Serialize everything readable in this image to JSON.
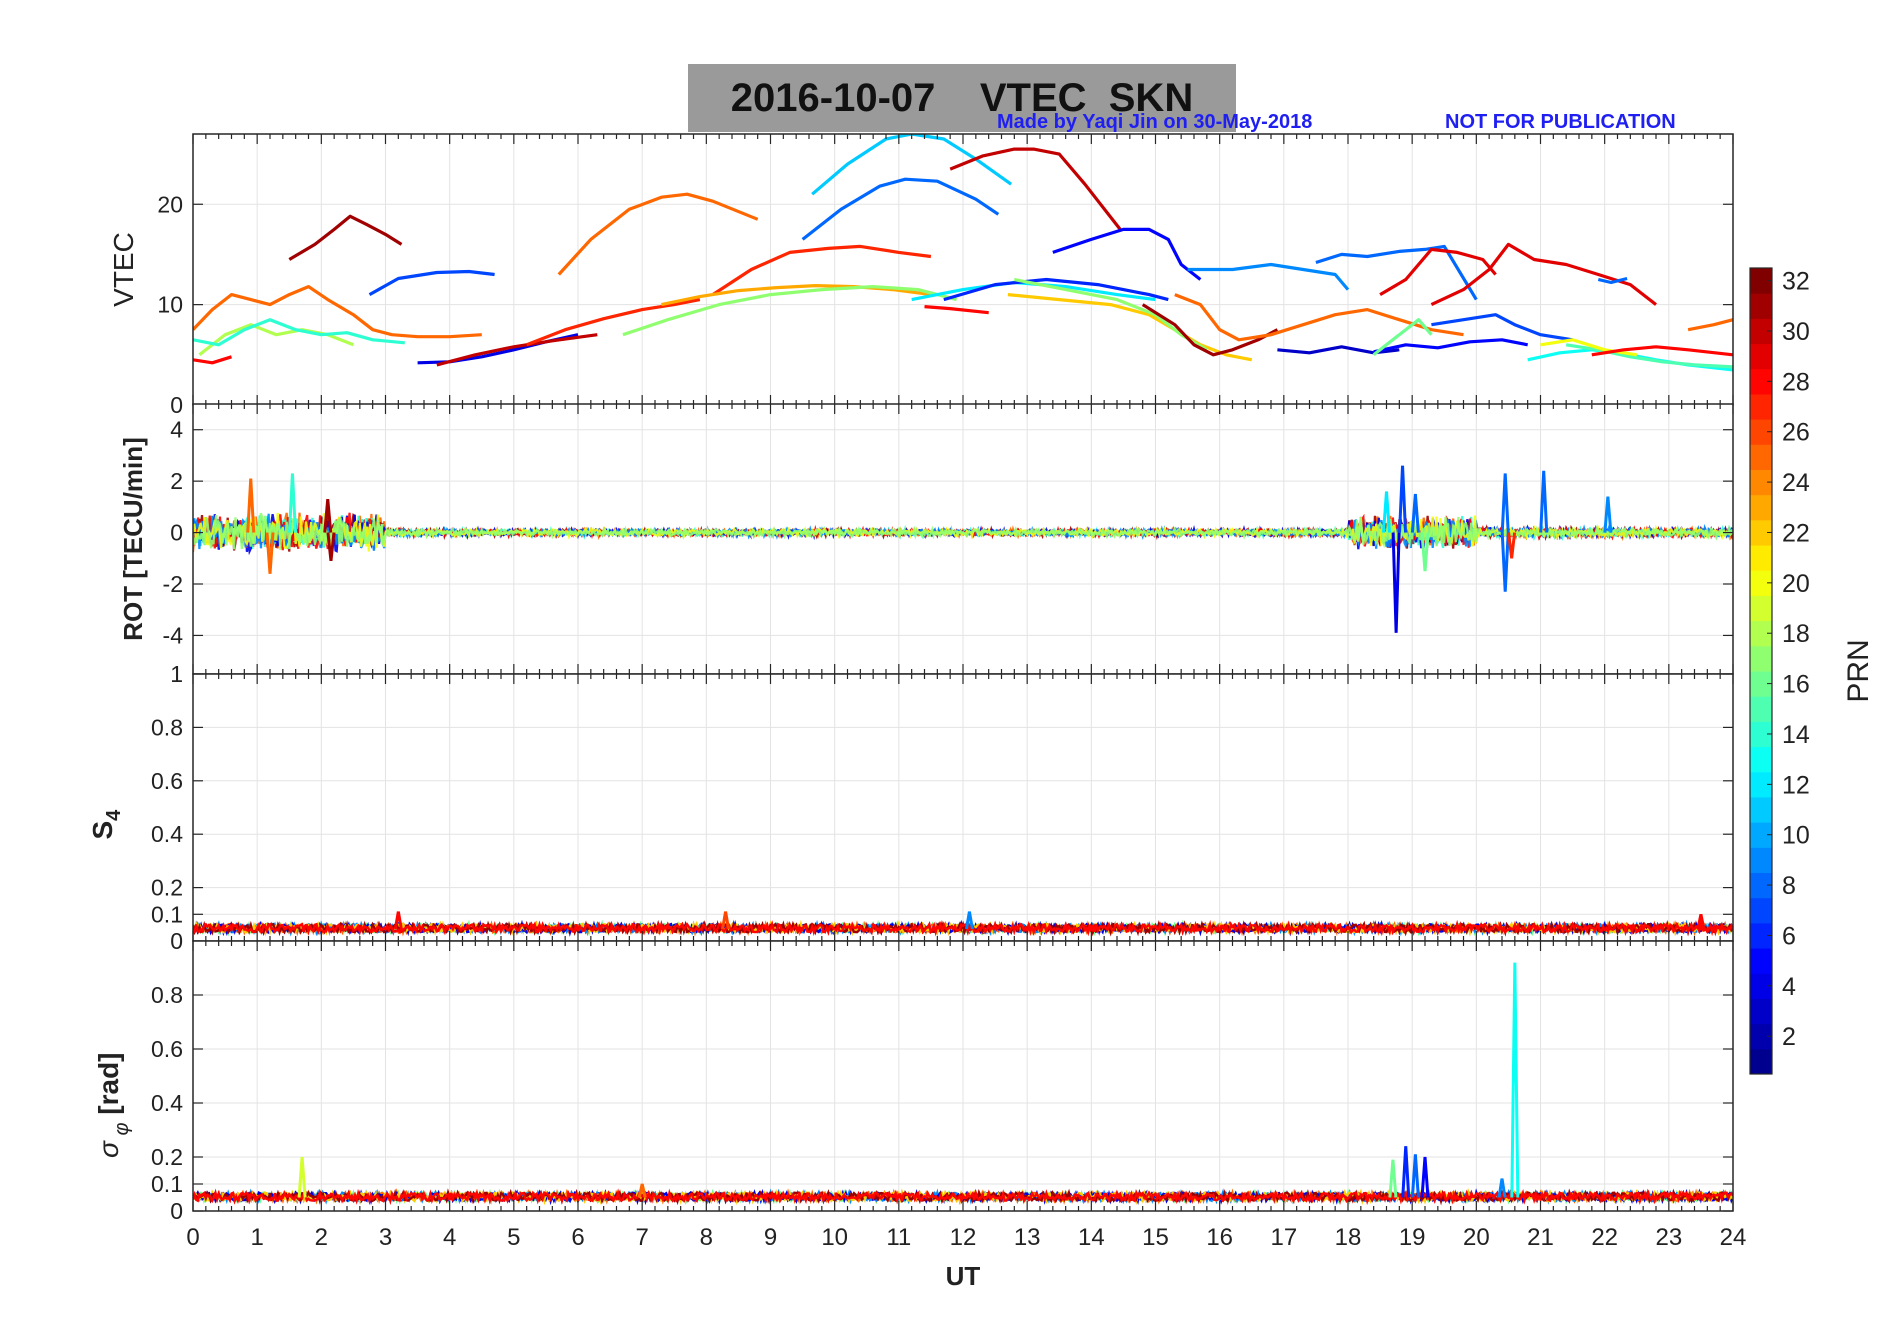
{
  "figure": {
    "title": "2016-10-07    VTEC  SKN",
    "credit": "Made by Yaqi Jin on 30-May-2018",
    "notice": "NOT FOR PUBLICATION"
  },
  "chart_data": [
    {
      "type": "line",
      "panel": "vtec",
      "ylabel": "VTEC",
      "ylim": [
        0,
        27
      ],
      "yticks": [
        "0",
        "10",
        "20"
      ],
      "xlim": [
        0,
        24
      ],
      "grid": true,
      "series": [
        {
          "prn": 31,
          "x": [
            1.5,
            1.9,
            2.2,
            2.45,
            2.7,
            3.0,
            3.25
          ],
          "y": [
            14.5,
            16,
            17.5,
            18.8,
            18,
            17,
            16
          ]
        },
        {
          "prn": 7,
          "x": [
            2.75,
            3.2,
            3.8,
            4.3,
            4.7
          ],
          "y": [
            11,
            12.6,
            13.2,
            13.3,
            13
          ]
        },
        {
          "prn": 25,
          "x": [
            5.7,
            6.2,
            6.8,
            7.3,
            7.7,
            8.1,
            8.8
          ],
          "y": [
            13,
            16.5,
            19.5,
            20.7,
            21,
            20.3,
            18.5
          ]
        },
        {
          "prn": 27,
          "x": [
            8.1,
            8.7,
            9.3,
            9.9,
            10.4,
            11.0,
            11.5
          ],
          "y": [
            11,
            13.5,
            15.2,
            15.6,
            15.8,
            15.2,
            14.8
          ]
        },
        {
          "prn": 11,
          "x": [
            9.65,
            10.2,
            10.8,
            11.2,
            11.7,
            12.2,
            12.75
          ],
          "y": [
            21,
            24,
            26.5,
            27,
            26.5,
            24.5,
            22
          ]
        },
        {
          "prn": 8,
          "x": [
            9.5,
            10.1,
            10.7,
            11.1,
            11.6,
            12.2,
            12.55
          ],
          "y": [
            16.5,
            19.5,
            21.8,
            22.5,
            22.3,
            20.5,
            19
          ]
        },
        {
          "prn": 30,
          "x": [
            11.8,
            12.3,
            12.8,
            13.1,
            13.5,
            13.9,
            14.45
          ],
          "y": [
            23.5,
            24.8,
            25.5,
            25.5,
            25,
            22,
            17.5
          ]
        },
        {
          "prn": 5,
          "x": [
            13.4,
            14.0,
            14.5,
            14.9,
            15.2,
            15.4,
            15.7
          ],
          "y": [
            15.2,
            16.5,
            17.5,
            17.5,
            16.5,
            14,
            12.5
          ]
        },
        {
          "prn": 9,
          "x": [
            15.5,
            16.2,
            16.8,
            17.3,
            17.8,
            18.0
          ],
          "y": [
            13.5,
            13.5,
            14,
            13.5,
            13,
            11.5
          ]
        },
        {
          "prn": 8,
          "x": [
            17.5,
            17.9,
            18.3,
            18.8,
            19.2,
            19.5,
            20.0
          ],
          "y": [
            14.2,
            15,
            14.8,
            15.3,
            15.5,
            15.8,
            10.5
          ]
        },
        {
          "prn": 29,
          "x": [
            18.5,
            18.9,
            19.3,
            19.7,
            20.1,
            20.3
          ],
          "y": [
            11,
            12.5,
            15.5,
            15.2,
            14.5,
            13
          ]
        },
        {
          "prn": 29,
          "x": [
            19.3,
            19.8,
            20.2,
            20.5,
            20.9,
            21.4,
            21.9,
            22.4,
            22.8
          ],
          "y": [
            10,
            11.5,
            13.5,
            16,
            14.5,
            14,
            13,
            12,
            10
          ]
        },
        {
          "prn": 25,
          "x": [
            0,
            0.3,
            0.6,
            0.9,
            1.2,
            1.5,
            1.8,
            2.1,
            2.5,
            2.8,
            3.1,
            3.5,
            4.0,
            4.5
          ],
          "y": [
            7.5,
            9.5,
            11,
            10.5,
            10,
            11,
            11.8,
            10.5,
            9,
            7.5,
            7,
            6.8,
            6.8,
            7
          ]
        },
        {
          "prn": 18,
          "x": [
            0.1,
            0.5,
            0.9,
            1.3,
            1.7,
            2.1,
            2.5
          ],
          "y": [
            5,
            7,
            8,
            7,
            7.5,
            7,
            6
          ]
        },
        {
          "prn": 14,
          "x": [
            0,
            0.4,
            0.8,
            1.2,
            1.6,
            2.0,
            2.4,
            2.8,
            3.3
          ],
          "y": [
            6.5,
            6,
            7.5,
            8.5,
            7.5,
            7,
            7.2,
            6.5,
            6.2
          ]
        },
        {
          "prn": 28,
          "x": [
            0,
            0.3,
            0.6
          ],
          "y": [
            4.5,
            4.2,
            4.8
          ]
        },
        {
          "prn": 4,
          "x": [
            3.5,
            4.0,
            4.5,
            5.0,
            5.5,
            6.0
          ],
          "y": [
            4.2,
            4.3,
            4.8,
            5.5,
            6.3,
            7
          ]
        },
        {
          "prn": 30,
          "x": [
            3.8,
            4.4,
            5.0,
            5.6,
            6.3
          ],
          "y": [
            4,
            5,
            5.8,
            6.4,
            7
          ]
        },
        {
          "prn": 27,
          "x": [
            5.2,
            5.8,
            6.4,
            7.0,
            7.5,
            7.9
          ],
          "y": [
            6,
            7.5,
            8.6,
            9.5,
            10,
            10.5
          ]
        },
        {
          "prn": 23,
          "x": [
            7.3,
            7.9,
            8.5,
            9.1,
            9.7,
            10.3,
            10.9,
            11.5
          ],
          "y": [
            10,
            10.8,
            11.4,
            11.7,
            11.9,
            11.8,
            11.5,
            11
          ]
        },
        {
          "prn": 17,
          "x": [
            6.7,
            7.4,
            8.2,
            9.0,
            9.8,
            10.6,
            11.3,
            11.9
          ],
          "y": [
            7,
            8.5,
            10,
            11,
            11.5,
            11.8,
            11.5,
            10.5
          ]
        },
        {
          "prn": 12,
          "x": [
            11.2,
            12.0,
            12.8,
            13.6,
            14.4,
            15.0
          ],
          "y": [
            10.5,
            11.5,
            12.2,
            11.8,
            11,
            10.5
          ]
        },
        {
          "prn": 6,
          "x": [
            11.7,
            12.5,
            13.3,
            14.1,
            14.9,
            15.2
          ],
          "y": [
            10.5,
            12,
            12.5,
            12,
            11,
            10.5
          ]
        },
        {
          "prn": 22,
          "x": [
            12.7,
            13.5,
            14.3,
            14.9,
            15.3,
            15.7,
            16.1,
            16.5
          ],
          "y": [
            11,
            10.5,
            10,
            9,
            7.5,
            6,
            5,
            4.5
          ]
        },
        {
          "prn": 17,
          "x": [
            12.8,
            13.6,
            14.4,
            15.0,
            15.4,
            15.8
          ],
          "y": [
            12.5,
            11.5,
            10.5,
            9,
            7,
            5.5
          ]
        },
        {
          "prn": 31,
          "x": [
            14.8,
            15.3,
            15.6,
            15.9,
            16.2,
            16.6,
            16.9
          ],
          "y": [
            10,
            8,
            6,
            5,
            5.5,
            6.5,
            7.5
          ]
        },
        {
          "prn": 25,
          "x": [
            15.3,
            15.7,
            16.0,
            16.3,
            16.8,
            17.3,
            17.8,
            18.3,
            18.8,
            19.3,
            19.8
          ],
          "y": [
            11,
            10,
            7.5,
            6.5,
            7,
            8,
            9,
            9.5,
            8.5,
            7.5,
            7
          ]
        },
        {
          "prn": 3,
          "x": [
            16.9,
            17.4,
            17.9,
            18.4,
            18.8
          ],
          "y": [
            5.5,
            5.2,
            5.8,
            5.2,
            5.5
          ]
        },
        {
          "prn": 5,
          "x": [
            18.4,
            18.9,
            19.4,
            19.9,
            20.4,
            20.8
          ],
          "y": [
            5.3,
            6,
            5.7,
            6.3,
            6.5,
            6
          ]
        },
        {
          "prn": 7,
          "x": [
            19.3,
            19.8,
            20.3,
            20.6,
            21.0,
            21.5
          ],
          "y": [
            8,
            8.5,
            9,
            8,
            7,
            6.5
          ]
        },
        {
          "prn": 16,
          "x": [
            18.4,
            18.8,
            19.1,
            19.3
          ],
          "y": [
            5,
            7,
            8.5,
            7
          ]
        },
        {
          "prn": 13,
          "x": [
            20.8,
            21.3,
            21.8,
            22.3,
            22.8,
            23.3,
            24.0
          ],
          "y": [
            4.5,
            5.2,
            5.5,
            5.1,
            4.5,
            4,
            3.5
          ]
        },
        {
          "prn": 15,
          "x": [
            21.4,
            21.9,
            22.4,
            22.9,
            23.4,
            24.0
          ],
          "y": [
            6,
            5.5,
            4.8,
            4.3,
            4,
            3.8
          ]
        },
        {
          "prn": 20,
          "x": [
            21.0,
            21.5,
            22.0,
            22.5
          ],
          "y": [
            6,
            6.5,
            5.5,
            5
          ]
        },
        {
          "prn": 28,
          "x": [
            21.8,
            22.3,
            22.8,
            23.3,
            24.0
          ],
          "y": [
            5,
            5.5,
            5.8,
            5.5,
            5
          ]
        },
        {
          "prn": 25,
          "x": [
            23.3,
            23.7,
            24.0
          ],
          "y": [
            7.5,
            8,
            8.5
          ]
        },
        {
          "prn": 8,
          "x": [
            21.9,
            22.1,
            22.35
          ],
          "y": [
            12.5,
            12.2,
            12.6
          ]
        },
        {
          "prn": 28,
          "x": [
            11.4,
            11.8,
            12.4
          ],
          "y": [
            9.8,
            9.6,
            9.2
          ]
        }
      ]
    },
    {
      "type": "line",
      "panel": "rot",
      "ylabel": "ROT [TECU/min]",
      "ylim": [
        -5.5,
        5
      ],
      "yticks": [
        "-4",
        "-2",
        "0",
        "2",
        "4"
      ],
      "xlim": [
        0,
        24
      ],
      "grid": true,
      "noise_bands": [
        {
          "x0": 0.0,
          "x1": 3.0,
          "amplitude": 0.8
        },
        {
          "x0": 3.0,
          "x1": 18.0,
          "amplitude": 0.15
        },
        {
          "x0": 18.0,
          "x1": 20.0,
          "amplitude": 0.7
        },
        {
          "x0": 20.0,
          "x1": 24.0,
          "amplitude": 0.2
        }
      ],
      "spikes": [
        {
          "x": 0.9,
          "y": 2.1,
          "prn": 25
        },
        {
          "x": 1.2,
          "y": -1.6,
          "prn": 25
        },
        {
          "x": 1.55,
          "y": 2.3,
          "prn": 14
        },
        {
          "x": 2.1,
          "y": 1.3,
          "prn": 31
        },
        {
          "x": 2.15,
          "y": -1.1,
          "prn": 31
        },
        {
          "x": 18.75,
          "y": -3.9,
          "prn": 4
        },
        {
          "x": 18.85,
          "y": 2.6,
          "prn": 7
        },
        {
          "x": 18.6,
          "y": 1.6,
          "prn": 12
        },
        {
          "x": 19.05,
          "y": 1.5,
          "prn": 8
        },
        {
          "x": 19.2,
          "y": -1.5,
          "prn": 16
        },
        {
          "x": 20.45,
          "y": 2.3,
          "prn": 8
        },
        {
          "x": 20.45,
          "y": -2.3,
          "prn": 8
        },
        {
          "x": 20.55,
          "y": -1.0,
          "prn": 27
        },
        {
          "x": 21.05,
          "y": 2.4,
          "prn": 8
        },
        {
          "x": 22.05,
          "y": 1.4,
          "prn": 9
        }
      ]
    },
    {
      "type": "line",
      "panel": "s4",
      "ylabel": "S4",
      "ylim": [
        0,
        1
      ],
      "yticks": [
        "0",
        "0.1",
        "0.2",
        "0.4",
        "0.6",
        "0.8",
        "1"
      ],
      "xlim": [
        0,
        24
      ],
      "grid": true,
      "baseline": 0.045,
      "noise_amplitude": 0.015,
      "spikes": [
        {
          "x": 3.2,
          "y": 0.11,
          "prn": 28
        },
        {
          "x": 8.3,
          "y": 0.11,
          "prn": 26
        },
        {
          "x": 12.1,
          "y": 0.11,
          "prn": 9
        },
        {
          "x": 23.5,
          "y": 0.1,
          "prn": 28
        }
      ]
    },
    {
      "type": "line",
      "panel": "sigma_phi",
      "ylabel": "σ_φ [rad]",
      "xlabel": "UT",
      "ylim": [
        0,
        1
      ],
      "yticks": [
        "0",
        "0.1",
        "0.2",
        "0.4",
        "0.6",
        "0.8"
      ],
      "xlim": [
        0,
        24
      ],
      "xticks": [
        "0",
        "1",
        "2",
        "3",
        "4",
        "5",
        "6",
        "7",
        "8",
        "9",
        "10",
        "11",
        "12",
        "13",
        "14",
        "15",
        "16",
        "17",
        "18",
        "19",
        "20",
        "21",
        "22",
        "23",
        "24"
      ],
      "grid": true,
      "baseline": 0.05,
      "noise_amplitude": 0.015,
      "spikes": [
        {
          "x": 1.7,
          "y": 0.2,
          "prn": 19
        },
        {
          "x": 7.0,
          "y": 0.1,
          "prn": 25
        },
        {
          "x": 18.7,
          "y": 0.19,
          "prn": 16
        },
        {
          "x": 18.9,
          "y": 0.24,
          "prn": 6
        },
        {
          "x": 19.05,
          "y": 0.21,
          "prn": 8
        },
        {
          "x": 19.2,
          "y": 0.2,
          "prn": 5
        },
        {
          "x": 20.4,
          "y": 0.12,
          "prn": 9
        },
        {
          "x": 20.6,
          "y": 0.92,
          "prn": 13
        }
      ]
    }
  ],
  "colorbar": {
    "label": "PRN",
    "min": 1,
    "max": 32,
    "ticks": [
      "2",
      "4",
      "6",
      "8",
      "10",
      "12",
      "14",
      "16",
      "18",
      "20",
      "22",
      "24",
      "26",
      "28",
      "30",
      "32"
    ],
    "colormap": "jet",
    "colors": [
      "#00008f",
      "#0000ff",
      "#0080ff",
      "#00ffff",
      "#80ff80",
      "#ffff00",
      "#ff8000",
      "#ff0000",
      "#800000"
    ]
  }
}
